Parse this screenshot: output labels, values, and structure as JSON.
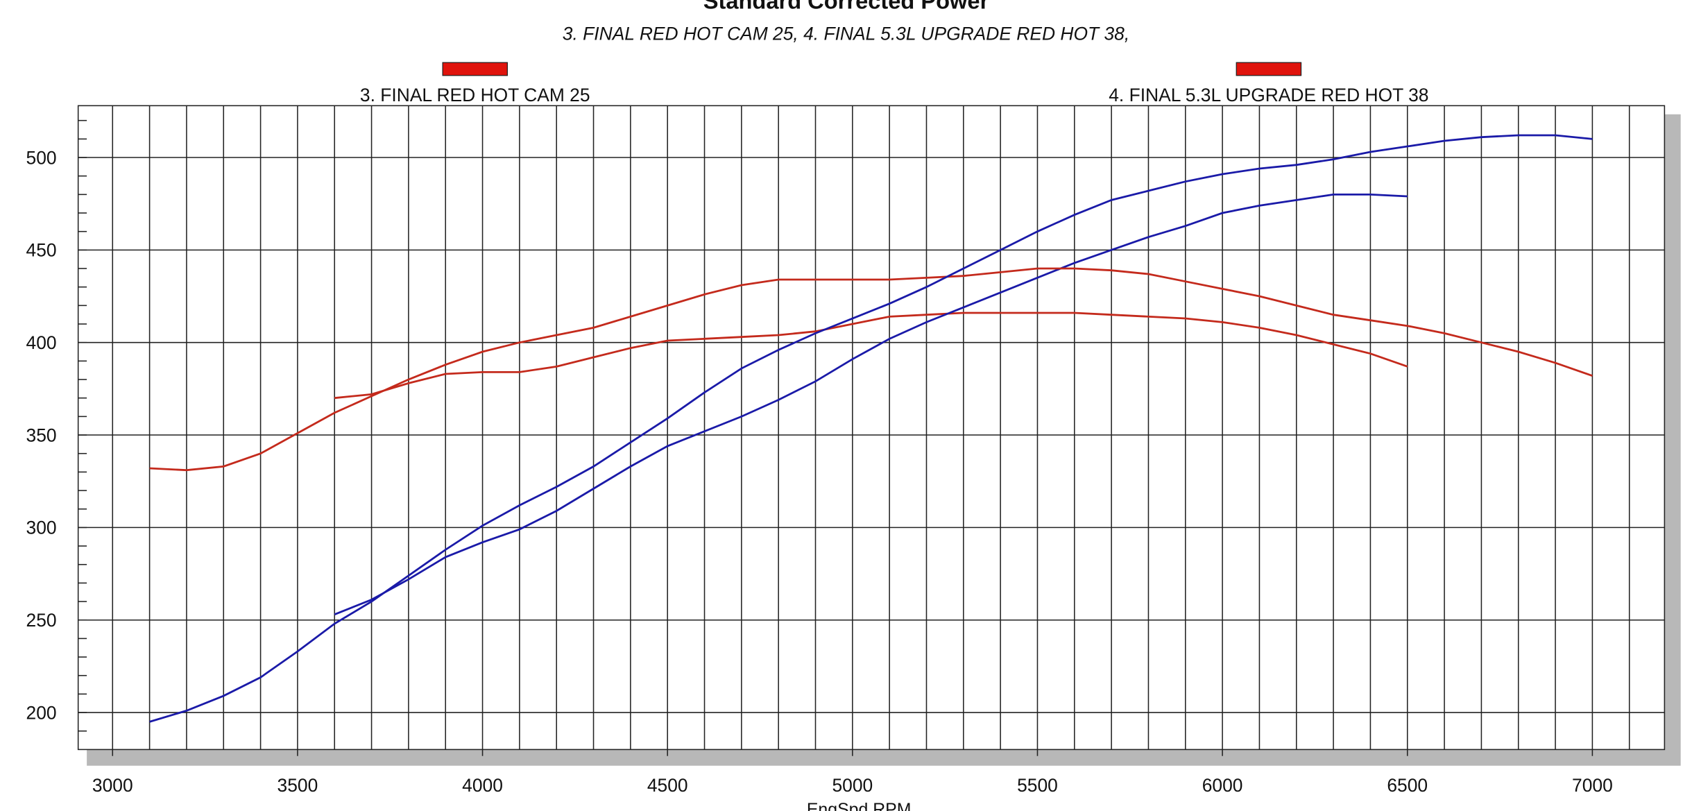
{
  "chart_data": {
    "type": "line",
    "title": "Standard Corrected Power",
    "subtitle": "3. FINAL RED HOT CAM 25, 4. FINAL 5.3L UPGRADE RED HOT 38,",
    "x_label": "EngSpd RPM",
    "legend": [
      {
        "label": "3. FINAL RED HOT CAM 25",
        "color": "#e0130c"
      },
      {
        "label": "4. FINAL 5.3L UPGRADE RED HOT 38",
        "color": "#e0130c"
      }
    ],
    "xlim": [
      2907,
      7195
    ],
    "ylim": [
      180,
      528
    ],
    "xticks": [
      3000,
      3500,
      4000,
      4500,
      5000,
      5500,
      6000,
      6500,
      7000
    ],
    "yticks": [
      200,
      250,
      300,
      350,
      400,
      450,
      500
    ],
    "grid": true,
    "series": [
      {
        "color": "#c42a1c",
        "x": [
          3600,
          3700,
          3800,
          3900,
          4000,
          4100,
          4200,
          4300,
          4400,
          4500,
          4600,
          4700,
          4800,
          4900,
          5000,
          5100,
          5200,
          5300,
          5400,
          5500,
          5600,
          5700,
          5800,
          5900,
          6000,
          6100,
          6200,
          6300,
          6400,
          6500
        ],
        "values": [
          370,
          372,
          378,
          383,
          384,
          384,
          387,
          392,
          397,
          401,
          402,
          403,
          404,
          406,
          410,
          414,
          415,
          416,
          416,
          416,
          416,
          415,
          414,
          413,
          411,
          408,
          404,
          399,
          394,
          387
        ]
      },
      {
        "color": "#1a1aa8",
        "x": [
          3600,
          3700,
          3800,
          3900,
          4000,
          4100,
          4200,
          4300,
          4400,
          4500,
          4600,
          4700,
          4800,
          4900,
          5000,
          5100,
          5200,
          5300,
          5400,
          5500,
          5600,
          5700,
          5800,
          5900,
          6000,
          6100,
          6200,
          6300,
          6400,
          6500
        ],
        "values": [
          253,
          261,
          272,
          284,
          292,
          299,
          309,
          321,
          333,
          344,
          352,
          360,
          369,
          379,
          391,
          402,
          411,
          419,
          427,
          435,
          443,
          450,
          457,
          463,
          470,
          474,
          477,
          480,
          480,
          479
        ]
      },
      {
        "color": "#c42a1c",
        "x": [
          3100,
          3200,
          3300,
          3400,
          3500,
          3600,
          3700,
          3800,
          3900,
          4000,
          4100,
          4200,
          4300,
          4400,
          4500,
          4600,
          4700,
          4800,
          4900,
          5000,
          5100,
          5200,
          5300,
          5400,
          5500,
          5600,
          5700,
          5800,
          5900,
          6000,
          6100,
          6200,
          6300,
          6400,
          6500,
          6600,
          6700,
          6800,
          6900,
          7000
        ],
        "values": [
          332,
          331,
          333,
          340,
          351,
          362,
          371,
          380,
          388,
          395,
          400,
          404,
          408,
          414,
          420,
          426,
          431,
          434,
          434,
          434,
          434,
          435,
          436,
          438,
          440,
          440,
          439,
          437,
          433,
          429,
          425,
          420,
          415,
          412,
          409,
          405,
          400,
          395,
          389,
          382
        ]
      },
      {
        "color": "#1a1aa8",
        "x": [
          3100,
          3200,
          3300,
          3400,
          3500,
          3600,
          3700,
          3800,
          3900,
          4000,
          4100,
          4200,
          4300,
          4400,
          4500,
          4600,
          4700,
          4800,
          4900,
          5000,
          5100,
          5200,
          5300,
          5400,
          5500,
          5600,
          5700,
          5800,
          5900,
          6000,
          6100,
          6200,
          6300,
          6400,
          6500,
          6600,
          6700,
          6800,
          6900,
          7000
        ],
        "values": [
          195,
          201,
          209,
          219,
          233,
          248,
          260,
          274,
          288,
          301,
          312,
          322,
          333,
          346,
          359,
          373,
          386,
          396,
          405,
          413,
          421,
          430,
          440,
          450,
          460,
          469,
          477,
          482,
          487,
          491,
          494,
          496,
          499,
          503,
          506,
          509,
          511,
          512,
          512,
          510
        ]
      }
    ]
  }
}
